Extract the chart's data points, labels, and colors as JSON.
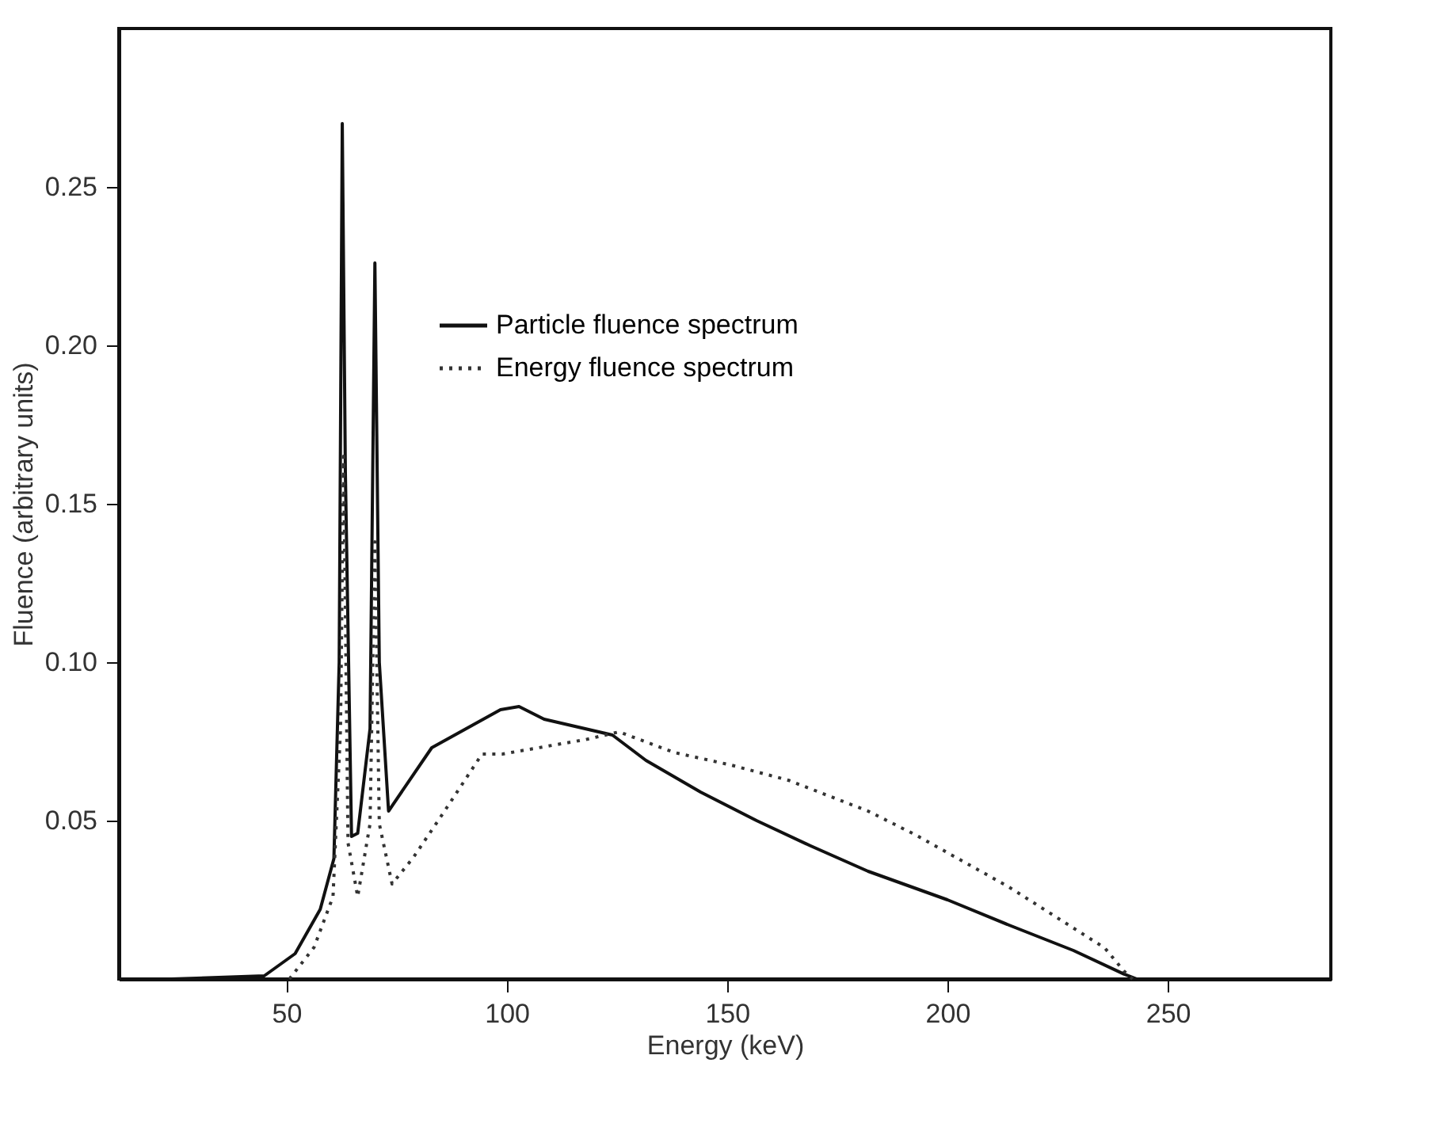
{
  "chart_data": {
    "type": "line",
    "xlabel": "Energy (keV)",
    "ylabel": "Fluence (arbitrary units)",
    "xlim": [
      12,
      287
    ],
    "ylim": [
      0,
      0.3
    ],
    "xticks": [
      50,
      100,
      150,
      200,
      250
    ],
    "yticks": [
      0.05,
      {
        "value": 0.1,
        "label": "0.10"
      },
      0.15,
      {
        "value": 0.2,
        "label": "0.20"
      },
      0.25
    ],
    "grid": false,
    "legend": "top left",
    "marker": "none",
    "series": [
      {
        "name": "Particle fluence spectrum",
        "color": "#111111",
        "line_style": "solid",
        "x": [
          24,
          45,
          52,
          57.7,
          60.8,
          62,
          62.7,
          63.4,
          64.8,
          66.2,
          69,
          70.1,
          71.1,
          73.2,
          83,
          98.6,
          102.8,
          108.5,
          124,
          131.6,
          144,
          156.7,
          169,
          182,
          200,
          214,
          228.6,
          240,
          243
        ],
        "values": [
          0,
          0.001,
          0.008,
          0.022,
          0.038,
          0.1,
          0.27,
          0.16,
          0.045,
          0.046,
          0.079,
          0.226,
          0.1,
          0.053,
          0.073,
          0.085,
          0.086,
          0.082,
          0.077,
          0.069,
          0.059,
          0.05,
          0.042,
          0.034,
          0.025,
          0.017,
          0.009,
          0.0016,
          0
        ]
      },
      {
        "name": "Energy fluence spectrum",
        "color": "#333333",
        "line_style": "dotted",
        "x": [
          50.7,
          56.3,
          60.6,
          62.3,
          63,
          64,
          66.2,
          69,
          70.1,
          71.1,
          74,
          78.9,
          85.9,
          94.4,
          99,
          118,
          125.5,
          138,
          151,
          164,
          182,
          192.9,
          214,
          235.7,
          240,
          242
        ],
        "values": [
          0,
          0.01,
          0.026,
          0.079,
          0.165,
          0.043,
          0.026,
          0.049,
          0.138,
          0.049,
          0.03,
          0.0385,
          0.053,
          0.071,
          0.071,
          0.0756,
          0.078,
          0.0715,
          0.0675,
          0.0627,
          0.053,
          0.0454,
          0.029,
          0.0098,
          0.0026,
          0
        ]
      }
    ]
  }
}
